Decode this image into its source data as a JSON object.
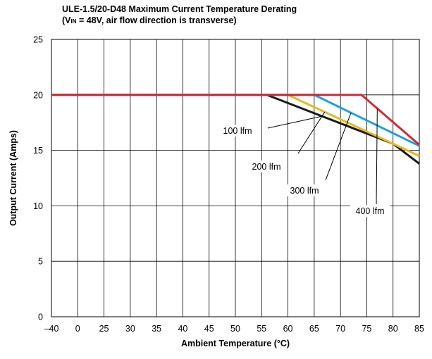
{
  "chart_data": {
    "type": "line",
    "title_line1": "ULE-1.5/20-D48 Maximum Current Temperature Derating",
    "title_line2_prefix": "(V",
    "title_line2_sub": "IN",
    "title_line2_suffix": " = 48V, air flow direction is transverse)",
    "xlabel": "Ambient Temperature (°C)",
    "ylabel": "Output Current (Amps)",
    "x_ticks": [
      "–40",
      "0",
      "25",
      "30",
      "35",
      "40",
      "45",
      "50",
      "55",
      "60",
      "65",
      "70",
      "75",
      "80",
      "85"
    ],
    "y_ticks": [
      "0",
      "5",
      "10",
      "15",
      "20",
      "25"
    ],
    "ylim": [
      0,
      25
    ],
    "grid": true,
    "series": [
      {
        "name": "100 lfm",
        "color": "#1a1a1a",
        "x": [
          "–40",
          "56",
          "80",
          "85"
        ],
        "y": [
          20,
          20,
          15.6,
          13.8
        ]
      },
      {
        "name": "200 lfm",
        "color": "#e8b81e",
        "x": [
          "–40",
          "60",
          "85"
        ],
        "y": [
          20,
          20,
          14.5
        ]
      },
      {
        "name": "300 lfm",
        "color": "#1e9fe0",
        "x": [
          "–40",
          "65",
          "85"
        ],
        "y": [
          20,
          20,
          15.4
        ]
      },
      {
        "name": "400 lfm",
        "color": "#cf2a33",
        "x": [
          "–40",
          "74",
          "85"
        ],
        "y": [
          20,
          20,
          15.5
        ]
      }
    ]
  }
}
